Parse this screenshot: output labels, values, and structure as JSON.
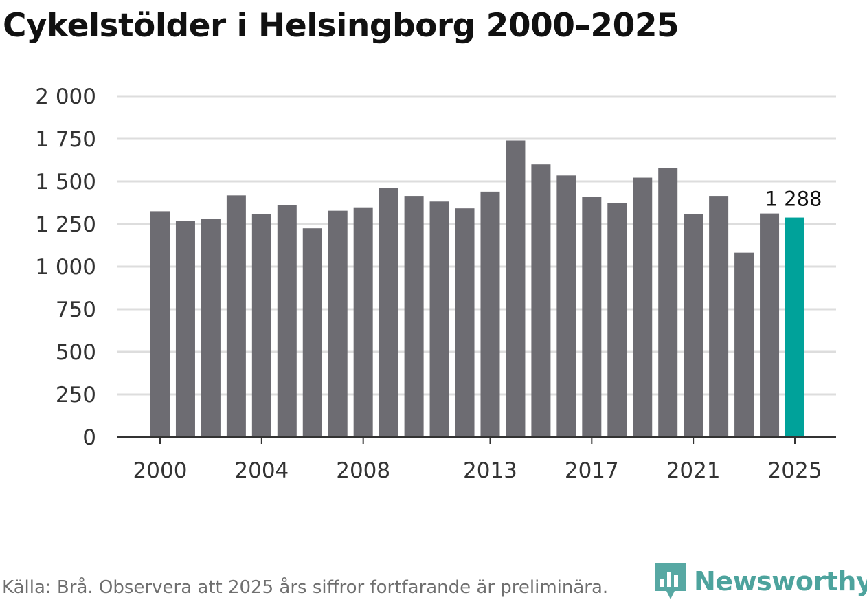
{
  "chart_data": {
    "type": "bar",
    "title": "Cykelstölder i Helsingborg 2000–2025",
    "xlabel": "",
    "ylabel": "",
    "categories": [
      "2000",
      "2001",
      "2002",
      "2003",
      "2004",
      "2005",
      "2006",
      "2007",
      "2008",
      "2009",
      "2010",
      "2011",
      "2012",
      "2013",
      "2014",
      "2015",
      "2016",
      "2017",
      "2018",
      "2019",
      "2020",
      "2021",
      "2022",
      "2023",
      "2024",
      "2025"
    ],
    "values": [
      1325,
      1268,
      1280,
      1418,
      1308,
      1362,
      1225,
      1328,
      1348,
      1463,
      1415,
      1382,
      1342,
      1440,
      1740,
      1600,
      1535,
      1408,
      1375,
      1522,
      1578,
      1310,
      1415,
      1082,
      1312,
      1288
    ],
    "ylim": [
      0,
      2000
    ],
    "yticks": [
      0,
      250,
      500,
      750,
      1000,
      1250,
      1500,
      1750,
      2000
    ],
    "ytick_labels": [
      "0",
      "250",
      "500",
      "750",
      "1 000",
      "1 250",
      "1 500",
      "1 750",
      "2 000"
    ],
    "xtick_labels": [
      "2000",
      "2004",
      "2008",
      "2013",
      "2017",
      "2021",
      "2025"
    ],
    "highlight": {
      "category": "2025",
      "label": "1 288"
    },
    "grid": true,
    "legend": "none",
    "colors": {
      "bar": "#6d6c72",
      "highlight": "#00a29a",
      "grid": "#dddddd",
      "axis": "#333333"
    }
  },
  "footer": {
    "source": "Källa: Brå. Observera att 2025 års siffror fortfarande är preliminära.",
    "brand": "Newsworthy"
  },
  "icons": {
    "brand_logo": "newsworthy-logo-icon"
  }
}
